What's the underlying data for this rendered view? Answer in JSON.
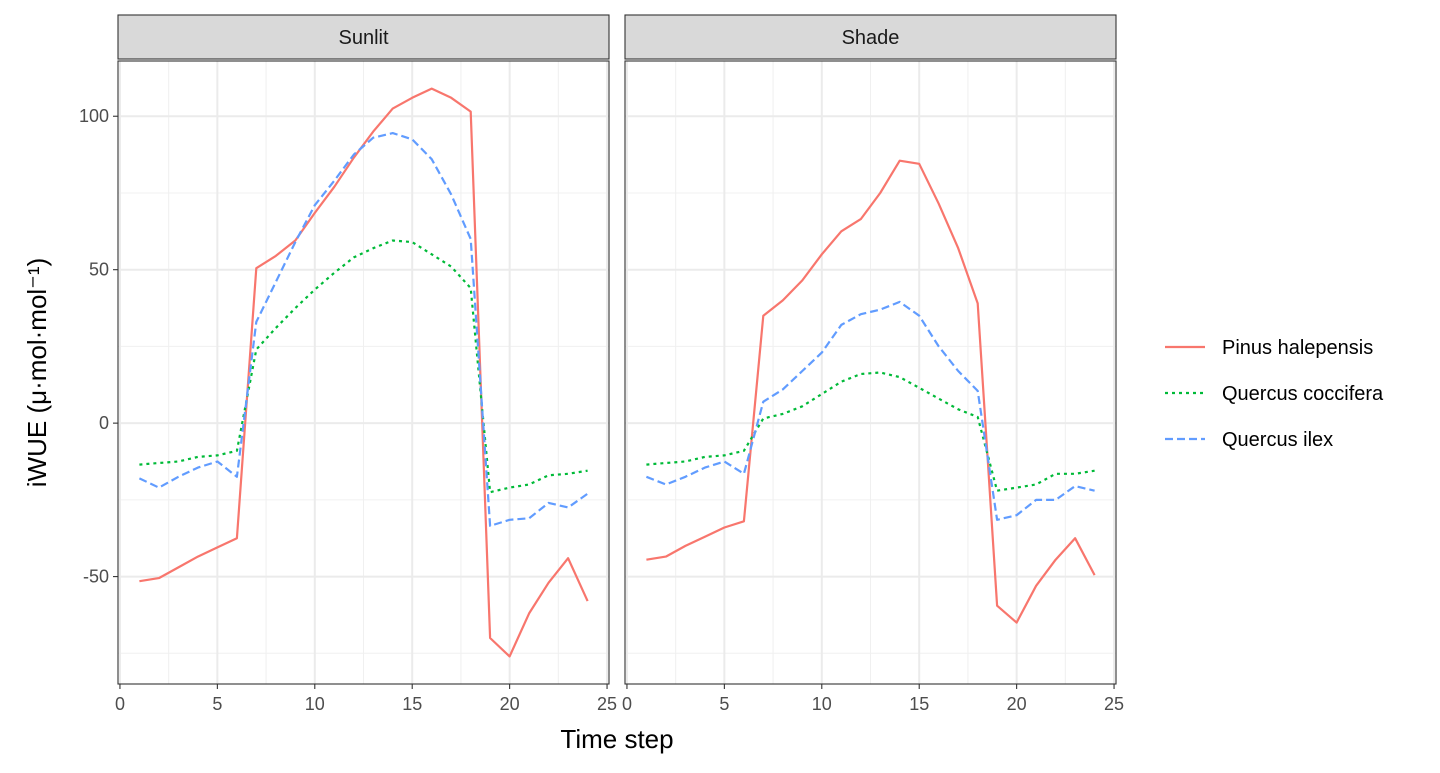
{
  "chart_data": {
    "type": "line",
    "xlabel": "Time step",
    "ylabel_main": "iWUE",
    "ylabel_unit": "(μ·mol·mol⁻¹)",
    "xlim": [
      0,
      25
    ],
    "ylim": [
      -85,
      118
    ],
    "x_ticks": [
      0,
      5,
      10,
      15,
      20,
      25
    ],
    "y_ticks": [
      -50,
      0,
      50,
      100
    ],
    "x_tick_labels": [
      "0",
      "5",
      "10",
      "15",
      "20",
      "25"
    ],
    "y_tick_labels": [
      "-50",
      "0",
      "50",
      "100"
    ],
    "grid": true,
    "legend_position": "right",
    "legend": [
      {
        "name": "Pinus halepensis",
        "color": "#F8766D",
        "dash": "solid"
      },
      {
        "name": "Quercus coccifera",
        "color": "#00BA38",
        "dash": "dotted"
      },
      {
        "name": "Quercus ilex",
        "color": "#619CFF",
        "dash": "dashed"
      }
    ],
    "panels": [
      {
        "title": "Sunlit",
        "series": [
          {
            "name": "Pinus halepensis",
            "x": [
              1,
              2,
              3,
              4,
              5,
              6,
              7,
              8,
              9,
              10,
              11,
              12,
              13,
              14,
              15,
              16,
              17,
              18,
              19,
              20,
              21,
              22,
              23,
              24
            ],
            "y": [
              -51.5,
              -50.5,
              -47,
              -43.5,
              -40.5,
              -37.5,
              50.5,
              54.5,
              59.5,
              68.5,
              77,
              86.5,
              95,
              102.5,
              106,
              109,
              106,
              101.5,
              -70,
              -76,
              -62,
              -52,
              -44,
              -58
            ]
          },
          {
            "name": "Quercus coccifera",
            "x": [
              1,
              2,
              3,
              4,
              5,
              6,
              7,
              8,
              9,
              10,
              11,
              12,
              13,
              14,
              15,
              16,
              17,
              18,
              19,
              20,
              21,
              22,
              23,
              24
            ],
            "y": [
              -13.5,
              -13,
              -12.5,
              -11,
              -10.5,
              -9,
              24,
              31,
              37.5,
              43.5,
              49,
              54,
              57,
              59.5,
              59,
              55,
              51,
              44,
              -22.5,
              -21,
              -20,
              -17,
              -16.5,
              -15.5
            ]
          },
          {
            "name": "Quercus ilex",
            "x": [
              1,
              2,
              3,
              4,
              5,
              6,
              7,
              8,
              9,
              10,
              11,
              12,
              13,
              14,
              15,
              16,
              17,
              18,
              19,
              20,
              21,
              22,
              23,
              24
            ],
            "y": [
              -18,
              -21,
              -17.5,
              -14.5,
              -12.5,
              -17.5,
              33,
              46,
              59,
              71,
              79,
              87.5,
              93,
              94.5,
              92.5,
              86,
              74.5,
              60,
              -33.5,
              -31.5,
              -31,
              -26,
              -27.5,
              -23
            ]
          }
        ]
      },
      {
        "title": "Shade",
        "series": [
          {
            "name": "Pinus halepensis",
            "x": [
              1,
              2,
              3,
              4,
              5,
              6,
              7,
              8,
              9,
              10,
              11,
              12,
              13,
              14,
              15,
              16,
              17,
              18,
              19,
              20,
              21,
              22,
              23,
              24
            ],
            "y": [
              -44.5,
              -43.5,
              -40,
              -37,
              -34,
              -32,
              35,
              40,
              46.5,
              55,
              62.5,
              66.5,
              75,
              85.5,
              84.5,
              71.5,
              57,
              39,
              -59.5,
              -65,
              -53,
              -44.5,
              -37.5,
              -49.5
            ]
          },
          {
            "name": "Quercus coccifera",
            "x": [
              1,
              2,
              3,
              4,
              5,
              6,
              7,
              8,
              9,
              10,
              11,
              12,
              13,
              14,
              15,
              16,
              17,
              18,
              19,
              20,
              21,
              22,
              23,
              24
            ],
            "y": [
              -13.5,
              -13,
              -12.5,
              -11,
              -10.5,
              -9,
              1.5,
              3,
              5.5,
              9.5,
              13.5,
              16,
              16.5,
              15,
              11.5,
              8,
              4.5,
              2,
              -22,
              -21,
              -20,
              -16.5,
              -16.5,
              -15.5
            ]
          },
          {
            "name": "Quercus ilex",
            "x": [
              1,
              2,
              3,
              4,
              5,
              6,
              7,
              8,
              9,
              10,
              11,
              12,
              13,
              14,
              15,
              16,
              17,
              18,
              19,
              20,
              21,
              22,
              23,
              24
            ],
            "y": [
              -17.5,
              -20,
              -17.5,
              -14.5,
              -12.5,
              -16.5,
              7,
              11,
              17,
              23,
              32,
              35.5,
              37,
              39.5,
              35,
              25,
              17,
              10.5,
              -31.5,
              -30,
              -25,
              -25,
              -20.5,
              -22
            ]
          }
        ]
      }
    ]
  }
}
